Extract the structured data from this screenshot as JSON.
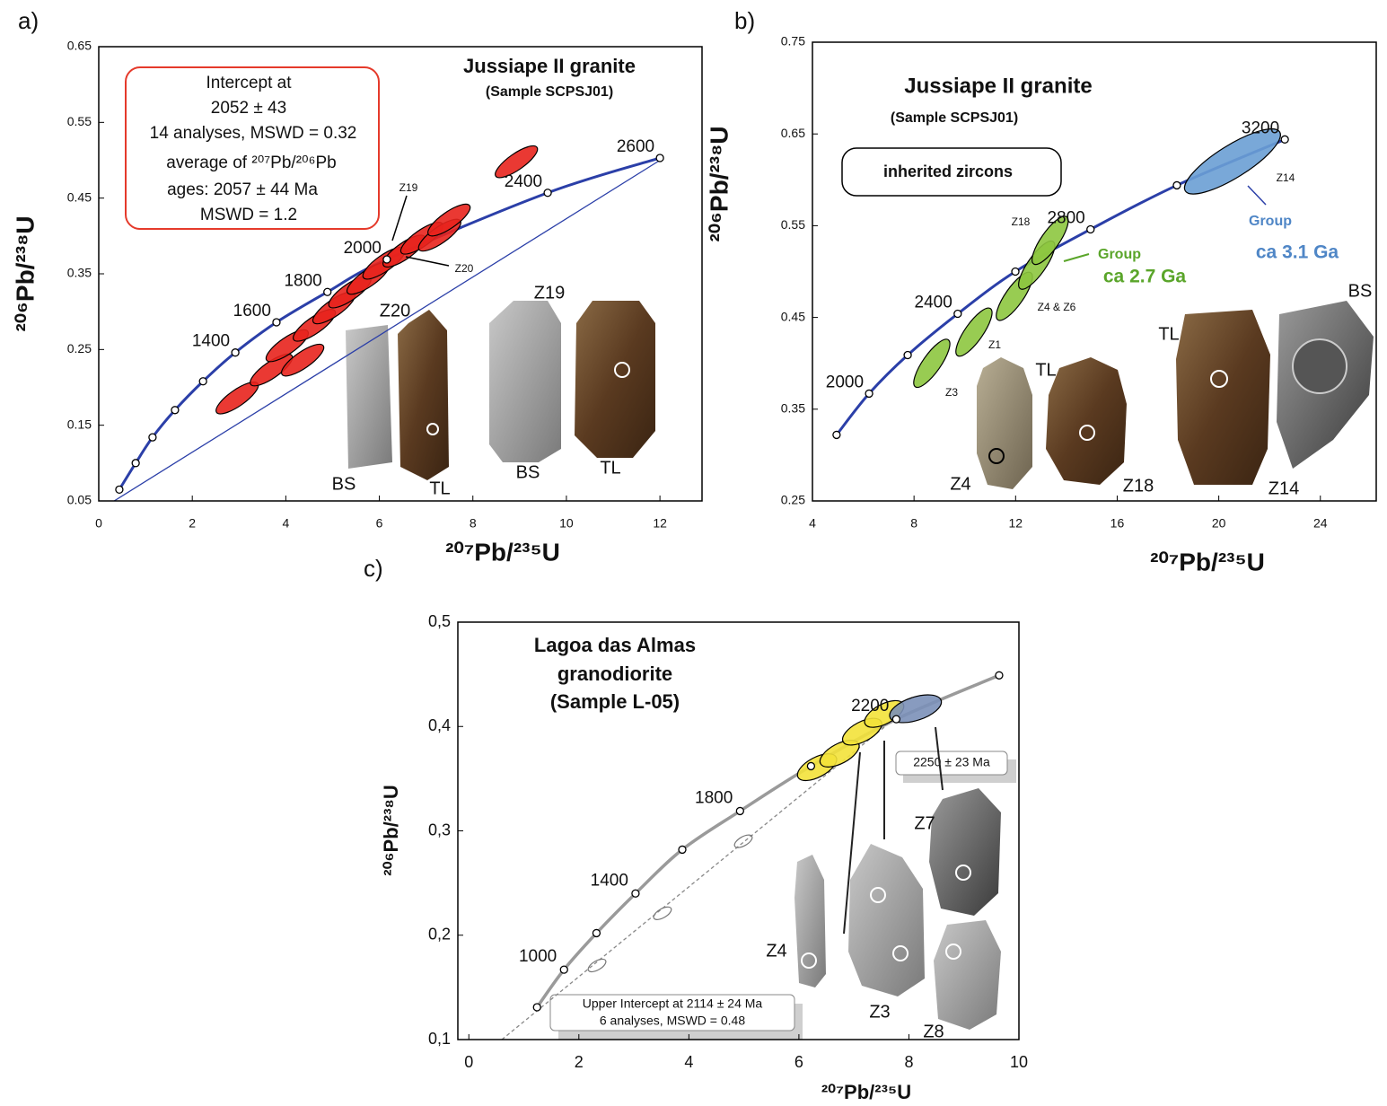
{
  "chart_data": [
    {
      "panel_label": "a)",
      "type": "concordia",
      "title": "Jussiape II granite",
      "subtitle": "(Sample SCPSJ01)",
      "xlabel": "²⁰⁷Pb/²³⁵U",
      "ylabel": "²⁰⁶Pb/²³⁸U",
      "xlim": [
        0,
        12.9
      ],
      "ylim": [
        0.05,
        0.65
      ],
      "xticks": [
        0,
        2,
        4,
        6,
        8,
        10,
        12
      ],
      "yticks": [
        0.05,
        0.15,
        0.25,
        0.35,
        0.45,
        0.55,
        0.65
      ],
      "concordia": {
        "color": "#2b3fa8",
        "x": [
          0.44,
          0.79,
          1.15,
          1.63,
          2.23,
          2.92,
          3.8,
          4.89,
          6.16,
          9.6,
          12.0
        ],
        "y": [
          0.065,
          0.1,
          0.134,
          0.17,
          0.208,
          0.246,
          0.286,
          0.326,
          0.369,
          0.457,
          0.503
        ],
        "labels": [
          null,
          null,
          null,
          null,
          null,
          "1400",
          "1600",
          "1800",
          "2000",
          "2400",
          "2600"
        ]
      },
      "discordia": {
        "color": "#2b3fa8",
        "style": "solid",
        "x": [
          0.33,
          12.0
        ],
        "y": [
          0.05,
          0.5
        ]
      },
      "ellipse_groups": [
        {
          "color": "#e8231d",
          "fill": true,
          "x": [
            2.96,
            3.69,
            4.36,
            4.03,
            4.61,
            5.03,
            5.37,
            5.76,
            6.1,
            6.53,
            6.91,
            7.29,
            7.49,
            8.93
          ],
          "y": [
            0.186,
            0.223,
            0.236,
            0.255,
            0.282,
            0.305,
            0.326,
            0.344,
            0.364,
            0.38,
            0.397,
            0.401,
            0.421,
            0.498
          ]
        }
      ],
      "annotations": [
        "Intercept at",
        "2052 ± 43",
        "14 analyses, MSWD = 0.32",
        "average of ²⁰⁷Pb/²⁰⁶Pb",
        "ages: 2057 ± 44 Ma",
        "MSWD = 1.2",
        "Z19",
        "Z20"
      ],
      "image_labels": [
        "Z20",
        "Z19",
        "BS",
        "TL",
        "BS",
        "TL"
      ]
    },
    {
      "panel_label": "b)",
      "type": "concordia",
      "title": "Jussiape II granite",
      "subtitle": "(Sample SCPSJ01)",
      "xlabel": "²⁰⁷Pb/²³⁵U",
      "ylabel": "²⁰⁶Pb/²³⁸U",
      "xlim": [
        4,
        26.2
      ],
      "ylim": [
        0.25,
        0.75
      ],
      "xticks": [
        4,
        8,
        12,
        16,
        20,
        24
      ],
      "yticks": [
        0.25,
        0.35,
        0.45,
        0.55,
        0.65,
        0.75
      ],
      "concordia": {
        "color": "#2b3fa8",
        "x": [
          4.95,
          6.23,
          7.75,
          9.72,
          11.99,
          14.95,
          18.35,
          22.6
        ],
        "y": [
          0.322,
          0.367,
          0.409,
          0.454,
          0.5,
          0.546,
          0.594,
          0.644
        ],
        "labels": [
          null,
          "2000",
          null,
          "2400",
          null,
          "2800",
          null,
          "3200"
        ]
      },
      "ellipse_groups": [
        {
          "color": "#8dc63f",
          "fill": true,
          "x": [
            8.7,
            10.36,
            11.95,
            12.83,
            13.36
          ],
          "y": [
            0.4,
            0.434,
            0.473,
            0.507,
            0.534
          ]
        },
        {
          "color": "#6a9fd4",
          "fill": true,
          "x": [
            20.54
          ],
          "y": [
            0.62
          ]
        }
      ],
      "annotations": [
        "inherited zircons",
        "Group",
        "ca 2.7 Ga",
        "Group",
        "ca 3.1 Ga",
        "Z18",
        "Z4 & Z6",
        "Z1",
        "Z3",
        "Z14"
      ],
      "image_labels": [
        "TL",
        "Z4",
        "Z18",
        "TL",
        "BS",
        "Z14"
      ]
    },
    {
      "panel_label": "c)",
      "type": "concordia",
      "title": [
        "Lagoa das Almas",
        "granodiorite"
      ],
      "subtitle": "(Sample L-05)",
      "xlabel": "²⁰⁷Pb/²³⁵U",
      "ylabel": "²⁰⁶Pb/²³⁸U",
      "xlim": [
        -0.2,
        10
      ],
      "ylim": [
        0.1,
        0.5
      ],
      "xticks": [
        0,
        2,
        4,
        6,
        8,
        10
      ],
      "yticks": [
        {
          "value": 0.1,
          "label": "0,1"
        },
        {
          "value": 0.2,
          "label": "0,2"
        },
        {
          "value": 0.3,
          "label": "0,3"
        },
        {
          "value": 0.4,
          "label": "0,4"
        },
        {
          "value": 0.5,
          "label": "0,5"
        }
      ],
      "concordia": {
        "color": "#9a9a9a",
        "x": [
          1.24,
          1.73,
          2.32,
          3.03,
          3.88,
          4.93,
          6.22,
          7.77,
          9.64
        ],
        "y": [
          0.131,
          0.167,
          0.202,
          0.24,
          0.282,
          0.319,
          0.362,
          0.407,
          0.449
        ],
        "labels": [
          null,
          "1000",
          null,
          "1400",
          null,
          "1800",
          null,
          "2200",
          null
        ]
      },
      "discordia": {
        "color": "#888888",
        "style": "dashed",
        "x": [
          0.6,
          7.8
        ],
        "y": [
          0.1,
          0.41
        ]
      },
      "ellipse_groups": [
        {
          "color": "#777777",
          "fill": false,
          "x": [
            2.33,
            3.52,
            4.99
          ],
          "y": [
            0.171,
            0.221,
            0.29
          ]
        },
        {
          "color": "#f3e23a",
          "fill": true,
          "x": [
            6.33,
            6.74,
            7.15,
            7.55
          ],
          "y": [
            0.361,
            0.374,
            0.395,
            0.412
          ]
        },
        {
          "color": "#7b90b8",
          "fill": true,
          "x": [
            8.12
          ],
          "y": [
            0.417
          ]
        }
      ],
      "annotations": [
        "Upper Intercept at  2114 ± 24 Ma",
        "6 analyses, MSWD = 0.48",
        "2250 ± 23 Ma"
      ],
      "image_labels": [
        "Z4",
        "Z3",
        "Z7",
        "Z8"
      ]
    }
  ]
}
